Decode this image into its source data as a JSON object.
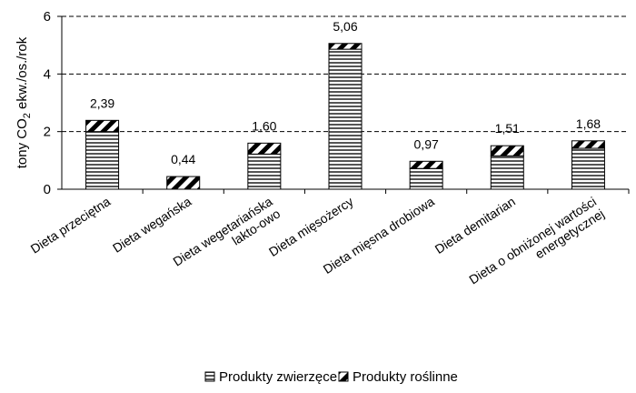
{
  "chart_data": {
    "type": "bar",
    "stacked": true,
    "categories": [
      [
        "Dieta przeciętna"
      ],
      [
        "Dieta wegańska"
      ],
      [
        "Dieta wegetariańska",
        "lakto-owo"
      ],
      [
        "Dieta mięsożercy"
      ],
      [
        "Dieta mięsna drobiowa"
      ],
      [
        "Dieta demitarian"
      ],
      [
        "Dieta  o obniżonej wartości",
        "energetycznej"
      ]
    ],
    "series": [
      {
        "name": "Produkty zwierzęce",
        "values": [
          2.0,
          0.0,
          1.22,
          4.86,
          0.72,
          1.16,
          1.42
        ]
      },
      {
        "name": "Produkty roślinne",
        "values": [
          0.39,
          0.44,
          0.38,
          0.2,
          0.25,
          0.35,
          0.26
        ]
      }
    ],
    "totals_labels": [
      "2,39",
      "0,44",
      "1,60",
      "5,06",
      "0,97",
      "1,51",
      "1,68"
    ],
    "ylabel": {
      "main": "tony  CO",
      "subscript": "2",
      "rest": " ekw./os./rok"
    },
    "ylim": [
      0,
      6
    ],
    "yticks": [
      "0",
      "2",
      "4",
      "6"
    ],
    "ytick_values": [
      0,
      2,
      4,
      6
    ],
    "grid": "dashed horizontal",
    "legend_position": "bottom"
  }
}
